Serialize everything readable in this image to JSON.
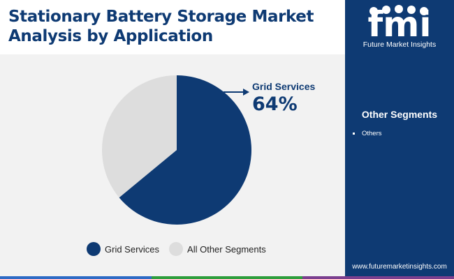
{
  "header": {
    "title": "Stationary Battery Storage Market Analysis by Application"
  },
  "brand": {
    "logo_letters": "fmi",
    "name": "Future Market Insights",
    "url": "www.futuremarketinsights.com"
  },
  "sidebar": {
    "title": "Other Segments",
    "items": [
      "Others"
    ]
  },
  "chart_data": {
    "type": "pie",
    "categories": [
      "Grid Services",
      "All Other Segments"
    ],
    "values": [
      64,
      36
    ],
    "colors": [
      "#0e3a73",
      "#dddddd"
    ],
    "callout": {
      "label": "Grid Services",
      "value": "64%"
    },
    "legend": [
      "Grid Services",
      "All Other Segments"
    ],
    "legend_position": "bottom"
  },
  "colors": {
    "brand_navy": "#0e3a73",
    "bottom_bar": [
      "#2e6bc5",
      "#2e9e3c",
      "#7b3f8f"
    ]
  }
}
